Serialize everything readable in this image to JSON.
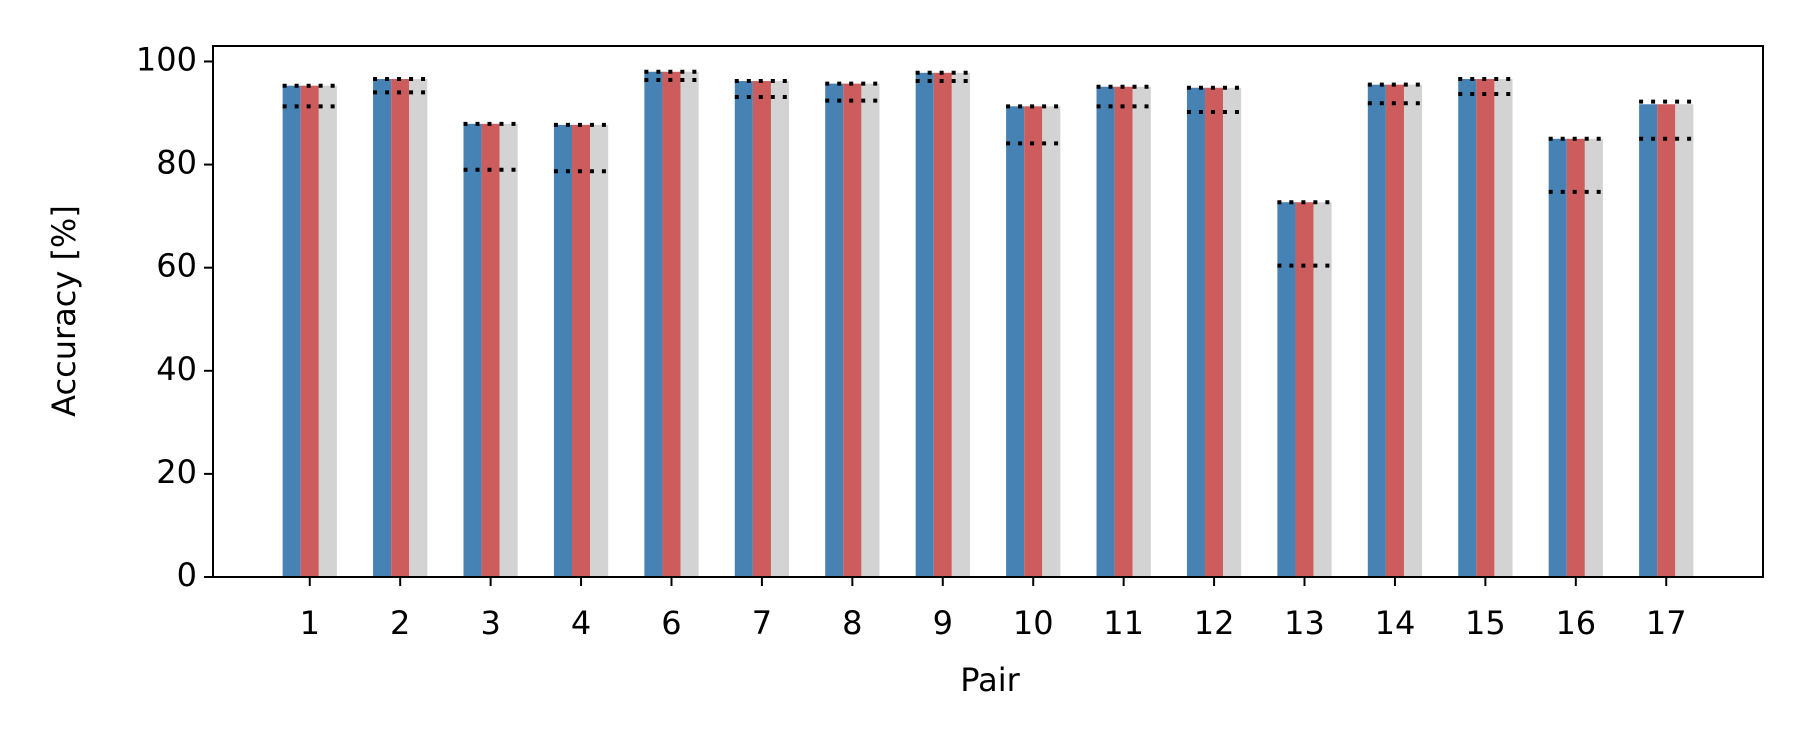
{
  "chart_data": {
    "type": "bar",
    "xlabel": "Pair",
    "ylabel": "Accuracy [%]",
    "categories": [
      "1",
      "2",
      "3",
      "4",
      "6",
      "7",
      "8",
      "9",
      "10",
      "11",
      "12",
      "13",
      "14",
      "15",
      "16",
      "17"
    ],
    "series": [
      {
        "kind": "bar",
        "color": "#4682b4",
        "values": [
          95.3,
          96.6,
          87.9,
          87.7,
          98.0,
          96.2,
          95.7,
          97.8,
          91.3,
          95.1,
          94.9,
          72.7,
          95.5,
          96.6,
          85.0,
          91.7
        ]
      },
      {
        "kind": "bar",
        "color": "#cd5c5c",
        "values": [
          95.3,
          96.6,
          87.9,
          87.7,
          98.0,
          96.2,
          95.7,
          97.8,
          91.3,
          95.1,
          94.9,
          72.7,
          95.5,
          96.6,
          85.0,
          91.7
        ]
      },
      {
        "kind": "bar",
        "color": "#d3d3d3",
        "values": [
          95.3,
          96.6,
          87.9,
          87.7,
          98.0,
          96.2,
          95.7,
          97.8,
          91.3,
          95.1,
          94.9,
          72.7,
          95.5,
          96.6,
          85.0,
          91.7
        ]
      },
      {
        "kind": "dotted",
        "color": "#000000",
        "values": [
          95.3,
          96.6,
          87.9,
          87.7,
          98.0,
          96.2,
          95.7,
          97.8,
          91.3,
          95.1,
          94.9,
          72.7,
          95.5,
          96.6,
          85.0,
          92.2
        ]
      },
      {
        "kind": "dotted",
        "color": "#000000",
        "values": [
          91.3,
          94.0,
          79.0,
          78.7,
          96.4,
          93.1,
          92.4,
          96.2,
          84.1,
          91.3,
          90.2,
          60.4,
          91.9,
          93.7,
          74.7,
          85.0
        ]
      }
    ],
    "ylim": [
      0,
      103
    ],
    "yticks": [
      0,
      20,
      40,
      60,
      80,
      100
    ]
  }
}
